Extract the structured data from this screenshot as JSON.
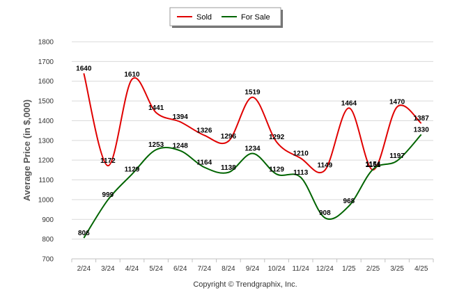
{
  "chart_data": {
    "type": "line",
    "categories": [
      "2/24",
      "3/24",
      "4/24",
      "5/24",
      "6/24",
      "7/24",
      "8/24",
      "9/24",
      "10/24",
      "11/24",
      "12/24",
      "1/25",
      "2/25",
      "3/25",
      "4/25"
    ],
    "series": [
      {
        "name": "Sold",
        "color": "#e00000",
        "values": [
          1640,
          1172,
          1610,
          1441,
          1394,
          1326,
          1296,
          1519,
          1292,
          1210,
          1149,
          1464,
          1151,
          1470,
          1387
        ]
      },
      {
        "name": "For Sale",
        "color": "#006400",
        "values": [
          806,
          999,
          1129,
          1253,
          1248,
          1164,
          1138,
          1234,
          1129,
          1113,
          908,
          968,
          1154,
          1197,
          1330
        ]
      }
    ],
    "ylabel": "Average Price (in $,000)",
    "xlabel": "",
    "title": "",
    "ylim": [
      700,
      1800
    ],
    "yticks": [
      700,
      800,
      900,
      1000,
      1100,
      1200,
      1300,
      1400,
      1500,
      1600,
      1700,
      1800
    ],
    "grid": true,
    "legend_position": "top-center"
  },
  "footer": {
    "copyright": "Copyright © Trendgraphix, Inc."
  }
}
